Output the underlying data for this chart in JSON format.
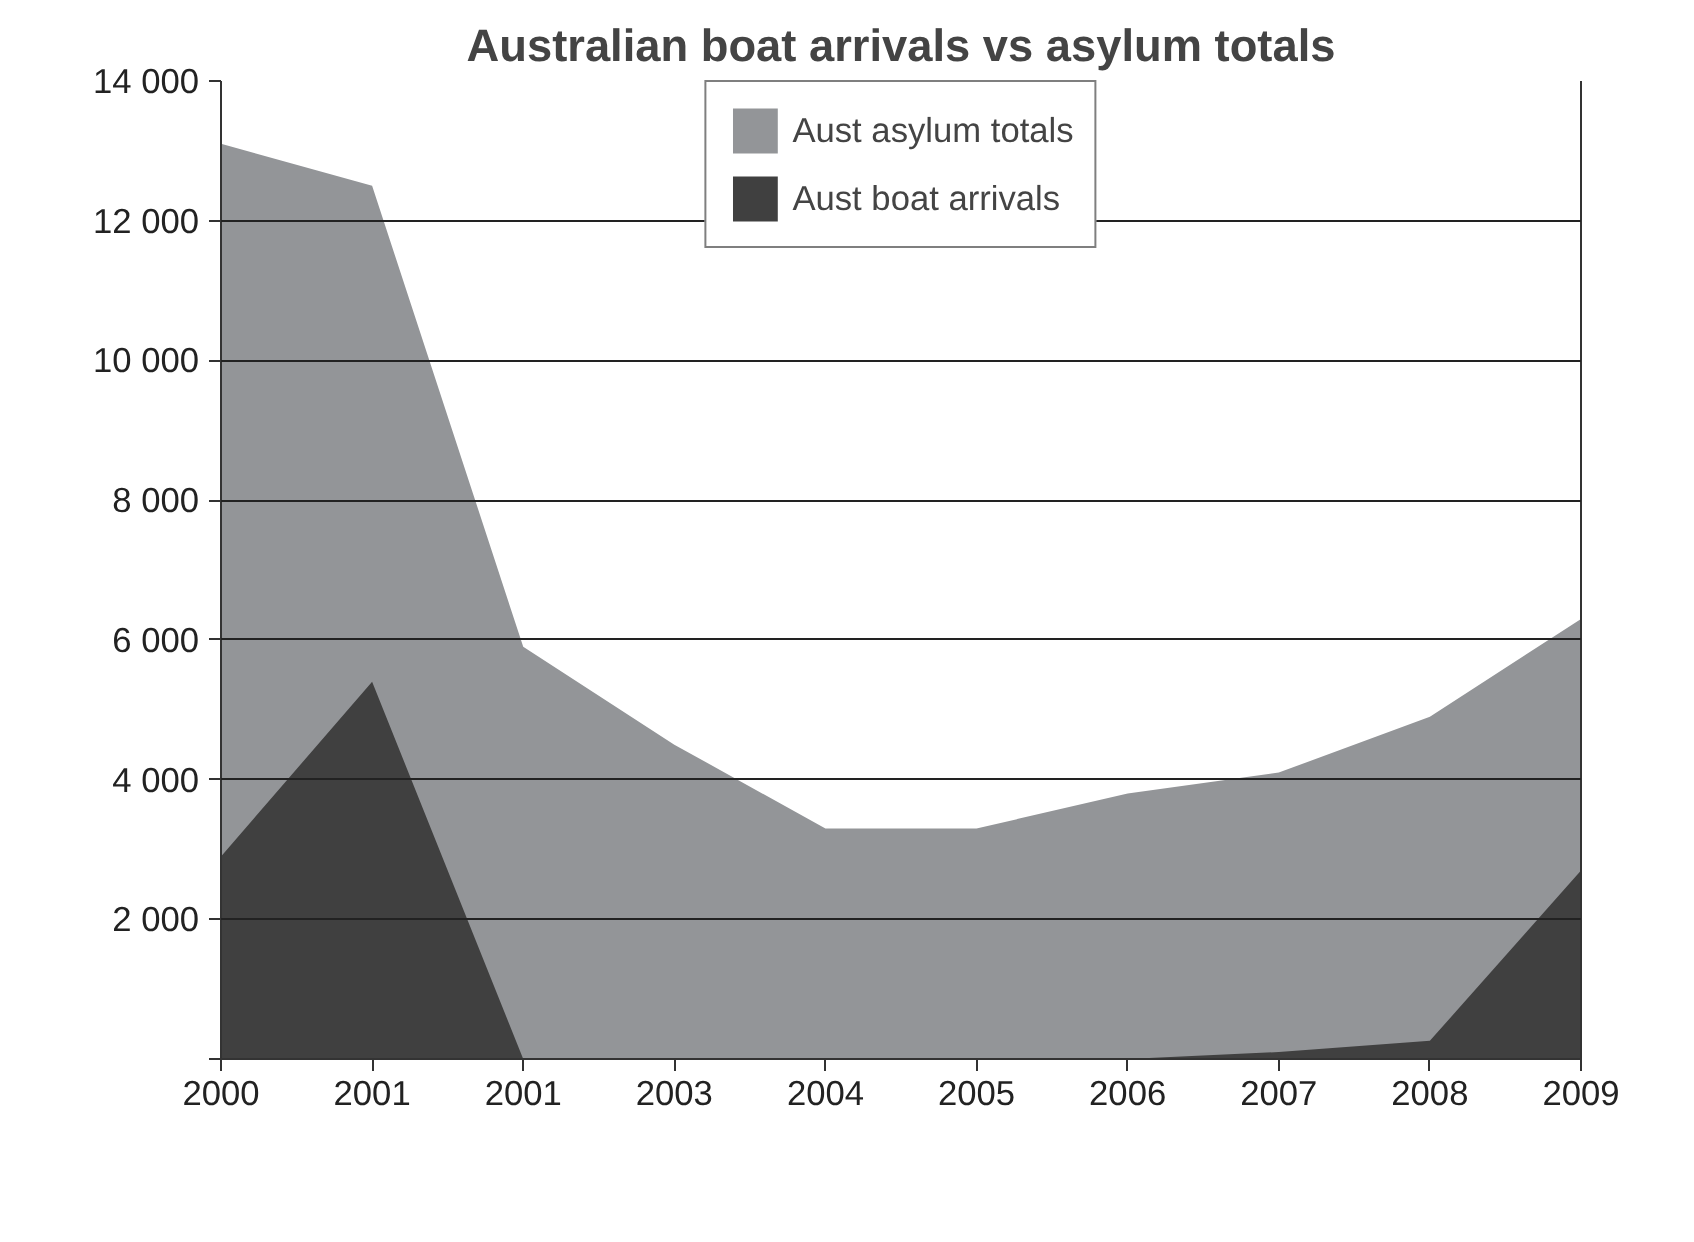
{
  "chart_data": {
    "type": "area",
    "title": "Australian boat arrivals vs asylum totals",
    "categories": [
      "2000",
      "2001",
      "2001",
      "2003",
      "2004",
      "2005",
      "2006",
      "2007",
      "2008",
      "2009"
    ],
    "series": [
      {
        "name": "Aust asylum totals",
        "color": "#939598",
        "values": [
          13100,
          12500,
          5900,
          4500,
          3300,
          3300,
          3800,
          4100,
          4900,
          6300
        ]
      },
      {
        "name": "Aust boat arrivals",
        "color": "#404040",
        "values": [
          2900,
          5400,
          0,
          0,
          0,
          0,
          0,
          100,
          260,
          2700
        ]
      }
    ],
    "ylim": [
      0,
      14000
    ],
    "yticks": [
      {
        "value": 0,
        "label": null
      },
      {
        "value": 2000,
        "label": "2 000"
      },
      {
        "value": 4000,
        "label": "4 000"
      },
      {
        "value": 6000,
        "label": "6 000"
      },
      {
        "value": 8000,
        "label": "8 000"
      },
      {
        "value": 10000,
        "label": "10 000"
      },
      {
        "value": 12000,
        "label": "12 000"
      },
      {
        "value": 14000,
        "label": "14 000"
      }
    ],
    "grid": "y",
    "legend": "top"
  }
}
